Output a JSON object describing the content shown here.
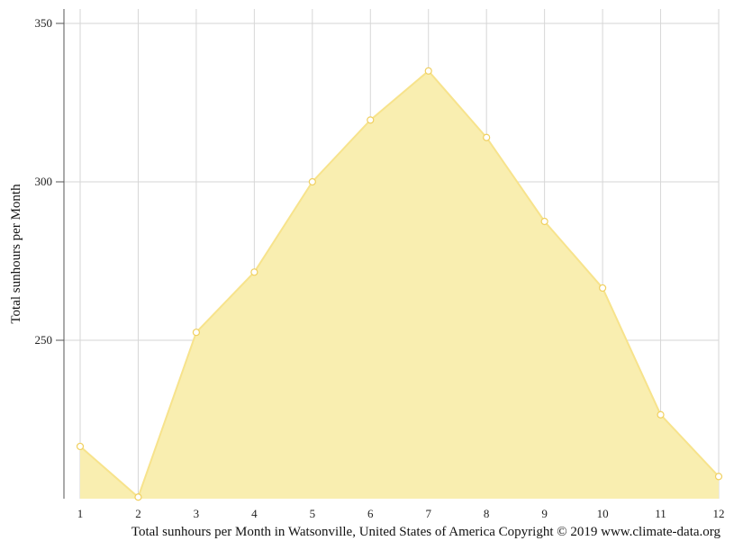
{
  "chart_data": {
    "type": "area",
    "title": "",
    "xlabel": "",
    "ylabel": "Total sunhours per Month",
    "x": [
      1,
      2,
      3,
      4,
      5,
      6,
      7,
      8,
      9,
      10,
      11,
      12
    ],
    "series": [
      {
        "values": [
          216.5,
          200.5,
          252.5,
          271.5,
          300,
          319.5,
          335,
          314,
          287.5,
          266.5,
          226.5,
          207
        ]
      }
    ],
    "ylim": [
      200,
      355
    ],
    "y_ticks": [
      250,
      300,
      350
    ],
    "grid": true,
    "fill_color": "#f9eeb0",
    "line_color": "#f7e38c",
    "marker_fill": "#ffffff",
    "marker_stroke": "#f0d060"
  },
  "caption": "Total sunhours per Month in Watsonville, United States of America Copyright © 2019 www.climate-data.org"
}
